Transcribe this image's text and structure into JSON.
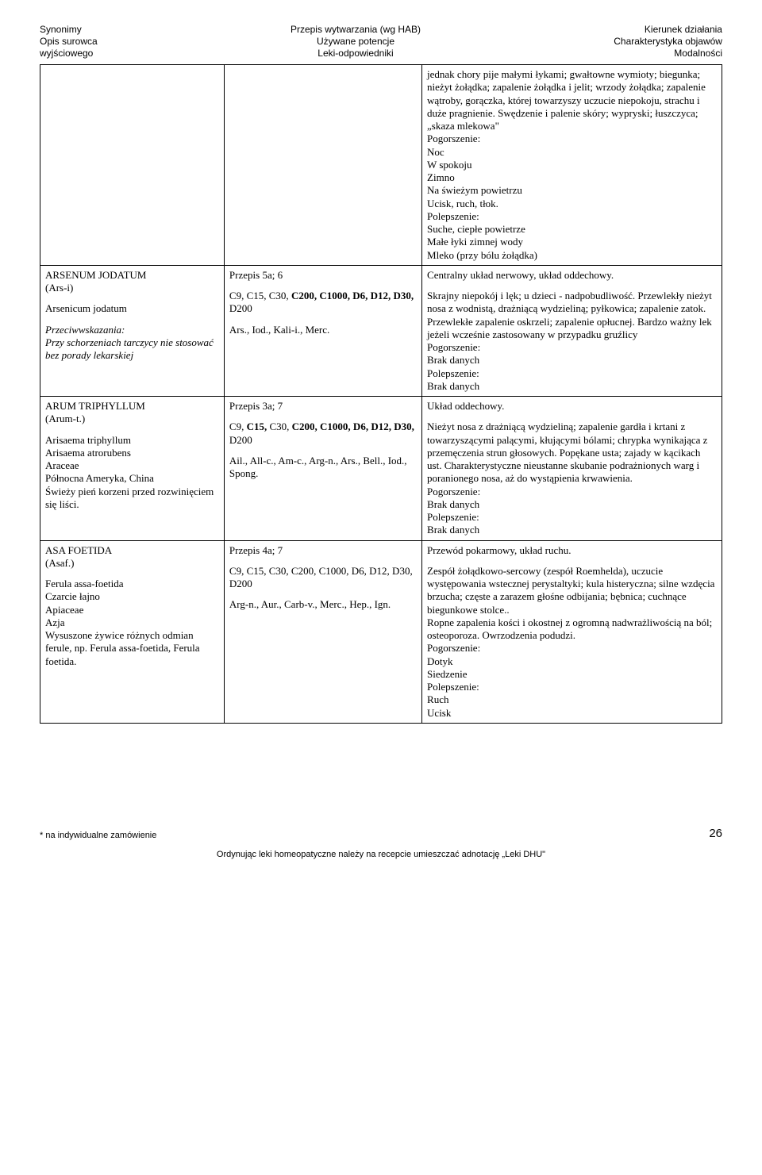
{
  "header": {
    "left": [
      "Synonimy",
      "Opis surowca",
      "wyjściowego"
    ],
    "center": [
      "Przepis wytwarzania (wg HAB)",
      "Używane potencje",
      "Leki-odpowiedniki"
    ],
    "right": [
      "Kierunek działania",
      "Charakterystyka objawów",
      "Modalności"
    ]
  },
  "row0": {
    "c3": {
      "p1": "jednak chory pije małymi łykami; gwałtowne wymioty; biegunka; nieżyt żołądka; zapalenie żołądka i jelit; wrzody żołądka; zapalenie wątroby, gorączka, której towarzyszy uczucie niepokoju, strachu i duże pragnienie. Swędzenie i palenie skóry; wypryski; łuszczyca; „skaza mlekowa\"",
      "pog_label": "Pogorszenie:",
      "pog": [
        "Noc",
        "W spokoju",
        "Zimno",
        "Na świeżym powietrzu",
        "Ucisk, ruch, tłok."
      ],
      "pol_label": "Polepszenie:",
      "pol": [
        "Suche, ciepłe powietrze",
        "Małe łyki zimnej wody",
        "Mleko (przy bólu żołądka)"
      ]
    }
  },
  "row1": {
    "c1": {
      "title": "ARSENUM JODATUM",
      "abbr": "(Ars-i)",
      "name": "Arsenicum jodatum",
      "contra_label": "Przeciwwskazania:",
      "contra": "Przy schorzeniach tarczycy nie stosować bez porady lekarskiej"
    },
    "c2": {
      "recipe": "Przepis 5a; 6",
      "pot_prefix": "C9, C15, C30, ",
      "pot_bold": "C200, C1000, D6, D12, D30,",
      "pot_suffix": " D200",
      "rel": "Ars., Iod., Kali-i., Merc."
    },
    "c3": {
      "kier": "Centralny układ nerwowy, układ oddechowy.",
      "char": "Skrajny niepokój i lęk; u dzieci - nadpobudliwość. Przewlekły nieżyt nosa z wodnistą, drażniącą wydzieliną; pyłkowica; zapalenie zatok. Przewlekłe zapalenie oskrzeli; zapalenie opłucnej.  Bardzo ważny lek jeżeli wcześnie zastosowany w przypadku gruźlicy",
      "pog_label": "Pogorszenie:",
      "pog": "Brak danych",
      "pol_label": "Polepszenie:",
      "pol": "Brak danych"
    }
  },
  "row2": {
    "c1": {
      "title": "ARUM TRIPHYLLUM",
      "abbr": "(Arum-t.)",
      "l1": "Arisaema triphyllum",
      "l2": "Arisaema atrorubens",
      "l3": "Araceae",
      "l4": "Północna Ameryka, China",
      "l5": "Świeży pień korzeni przed rozwinięciem się liści."
    },
    "c2": {
      "recipe": "Przepis 3a; 7",
      "pot_prefix": "C9, ",
      "pot_bold": "C15,",
      "pot_mid": " C30, ",
      "pot_bold2": "C200, C1000, D6, D12, D30,",
      "pot_suffix": " D200",
      "rel": "Ail., All-c., Am-c., Arg-n., Ars., Bell., Iod., Spong."
    },
    "c3": {
      "kier": "Układ oddechowy.",
      "char": "Nieżyt nosa z drażniącą  wydzieliną; zapalenie gardła i krtani z towarzyszącymi palącymi, kłującymi bólami; chrypka wynikająca z przemęczenia strun głosowych. Popękane usta; zajady w kącikach ust. Charakterystyczne nieustanne skubanie podrażnionych warg i poranionego nosa, aż do wystąpienia krwawienia.",
      "pog_label": "Pogorszenie:",
      "pog": "Brak danych",
      "pol_label": "Polepszenie:",
      "pol": "Brak danych"
    }
  },
  "row3": {
    "c1": {
      "title": "ASA FOETIDA",
      "abbr": "(Asaf.)",
      "l1": "Ferula assa-foetida",
      "l2": "Czarcie łajno",
      "l3": "Apiaceae",
      "l4": "Azja",
      "l5": "Wysuszone żywice różnych odmian ferule, np. Ferula assa-foetida, Ferula foetida."
    },
    "c2": {
      "recipe": "Przepis 4a; 7",
      "pot": "C9, C15, C30, C200, C1000, D6, D12, D30, D200",
      "rel": "Arg-n., Aur., Carb-v., Merc., Hep., Ign."
    },
    "c3": {
      "kier": "Przewód pokarmowy, układ ruchu.",
      "char": "Zespół żołądkowo-sercowy (zespół Roemhelda), uczucie występowania wstecznej perystaltyki; kula histeryczna; silne wzdęcia brzucha; częste a zarazem głośne odbijania; bębnica; cuchnące biegunkowe stolce..",
      "char2": "Ropne zapalenia kości i okostnej z ogromną nadwrażliwością na ból; osteoporoza. Owrzodzenia podudzi.",
      "pog_label": "Pogorszenie:",
      "pog": [
        "Dotyk",
        "Siedzenie"
      ],
      "pol_label": "Polepszenie:",
      "pol": [
        "Ruch",
        "Ucisk"
      ]
    }
  },
  "footnote": "* na indywidualne zamówienie",
  "pagenum": "26",
  "bottom": "Ordynując leki homeopatyczne należy na recepcie umieszczać adnotację „Leki DHU\""
}
